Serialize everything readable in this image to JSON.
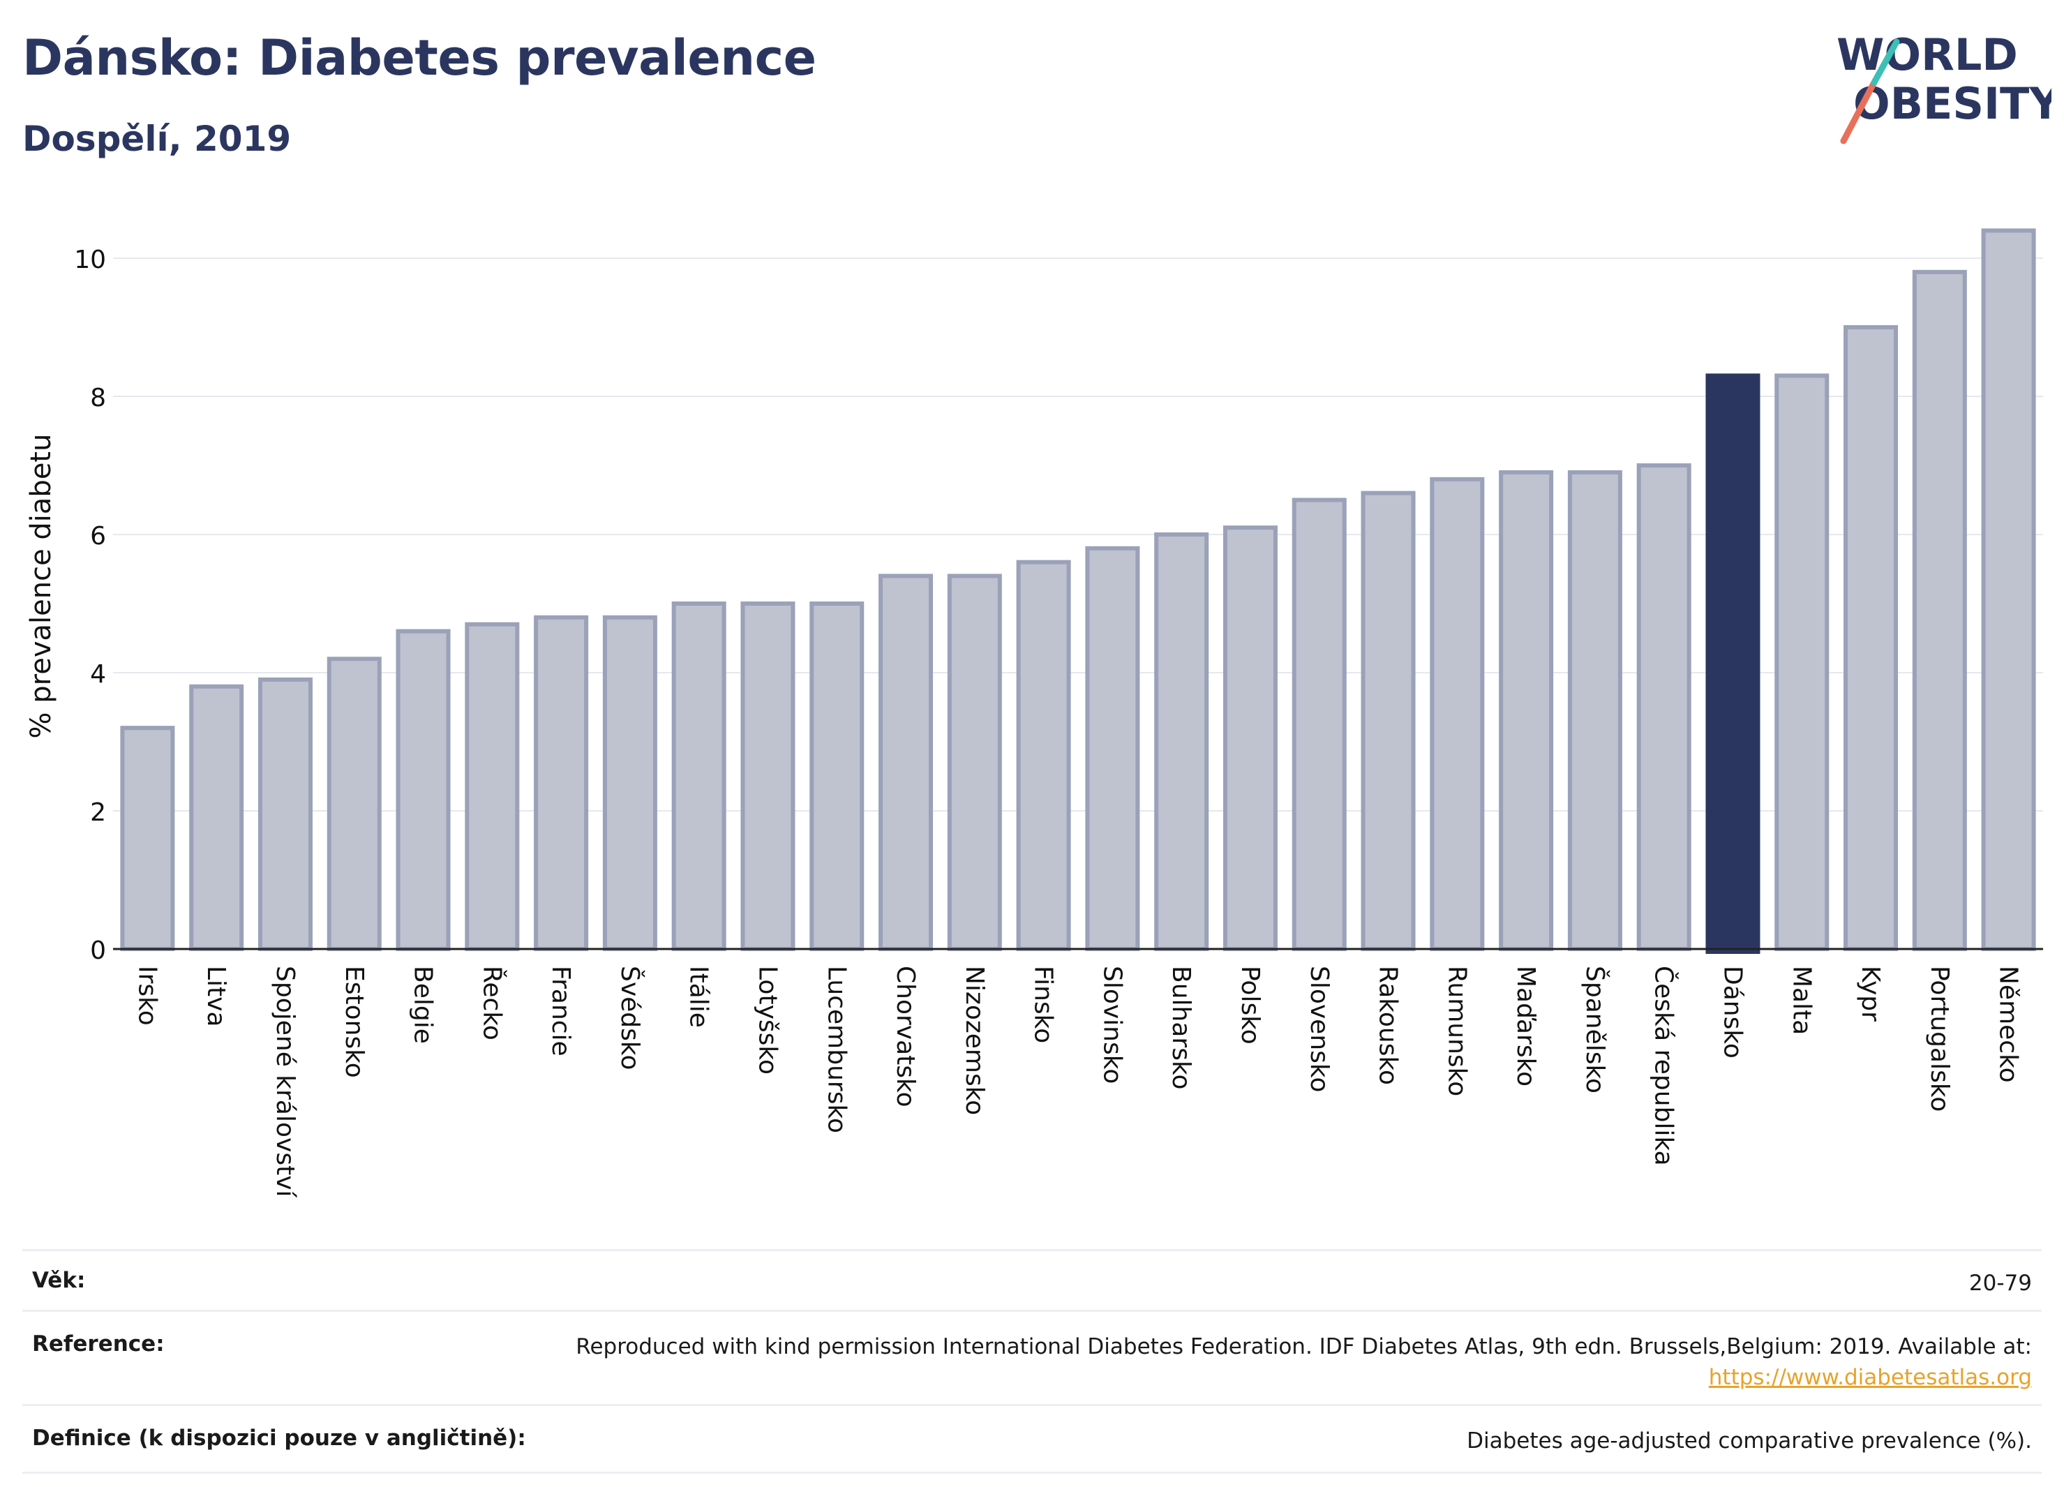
{
  "header": {
    "title": "Dánsko: Diabetes prevalence",
    "subtitle": "Dospělí, 2019"
  },
  "logo": {
    "line1": "WORLD",
    "line2": "OBESITY",
    "text_color": "#2b3660",
    "slash_colors": [
      "#e8705a",
      "#3cbfb4"
    ]
  },
  "chart_data": {
    "type": "bar",
    "ylabel": "% prevalence diabetu",
    "ylim": [
      0,
      10.5
    ],
    "yticks": [
      0,
      2,
      4,
      6,
      8,
      10
    ],
    "grid": true,
    "highlight_category": "Dánsko",
    "colors": {
      "bar": "#bfc2cf",
      "bar_edge": "#9aa1b8",
      "highlight": "#2b3660"
    },
    "categories": [
      "Irsko",
      "Litva",
      "Spojené království",
      "Estonsko",
      "Belgie",
      "Řecko",
      "Francie",
      "Švédsko",
      "Itálie",
      "Lotyšsko",
      "Lucembursko",
      "Chorvatsko",
      "Nizozemsko",
      "Finsko",
      "Slovinsko",
      "Bulharsko",
      "Polsko",
      "Slovensko",
      "Rakousko",
      "Rumunsko",
      "Maďarsko",
      "Španělsko",
      "Česká republika",
      "Dánsko",
      "Malta",
      "Kypr",
      "Portugalsko",
      "Německo"
    ],
    "values": [
      3.2,
      3.8,
      3.9,
      4.2,
      4.6,
      4.7,
      4.8,
      4.8,
      5.0,
      5.0,
      5.0,
      5.4,
      5.4,
      5.6,
      5.8,
      6.0,
      6.1,
      6.5,
      6.6,
      6.8,
      6.9,
      6.9,
      7.0,
      8.3,
      8.3,
      9.0,
      9.8,
      10.4
    ]
  },
  "info_table": {
    "rows": [
      {
        "label": "Věk:",
        "value": "20-79"
      },
      {
        "label": "Reference:",
        "value": "Reproduced with kind permission International Diabetes Federation. IDF Diabetes Atlas, 9th edn. Brussels,Belgium: 2019. Available at:",
        "link": "https://www.diabetesatlas.org"
      },
      {
        "label": "Definice (k dispozici pouze v angličtině):",
        "value": "Diabetes age-adjusted comparative prevalence (%)."
      }
    ]
  }
}
